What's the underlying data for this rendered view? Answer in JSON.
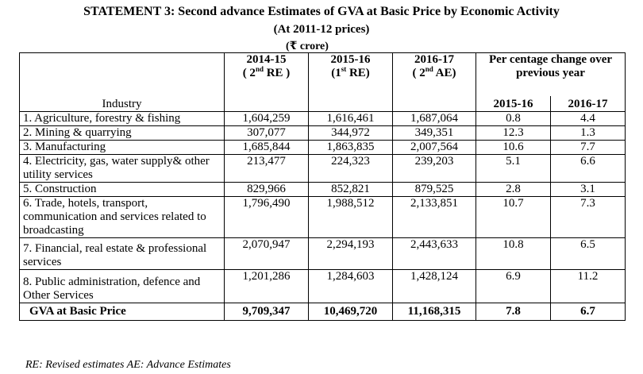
{
  "title": "STATEMENT 3: Second advance Estimates of GVA at Basic Price by Economic Activity",
  "subtitle": "(At 2011-12 prices)",
  "unit": "(₹ crore)",
  "headers": {
    "industry": "Industry",
    "c1_year": "2014-15",
    "c1_pre": "( 2",
    "c1_sup": "nd",
    "c1_post": " RE )",
    "c2_year": "2015-16",
    "c2_pre": "(1",
    "c2_sup": "st",
    "c2_post": " RE)",
    "c3_year": "2016-17",
    "c3_pre": "( 2",
    "c3_sup": "nd",
    "c3_post": " AE)",
    "pct_change": "Per centage change over previous year",
    "pct_y1": "2015-16",
    "pct_y2": "2016-17"
  },
  "rows": [
    {
      "industry": "1. Agriculture, forestry & fishing",
      "v1": "1,604,259",
      "v2": "1,616,461",
      "v3": "1,687,064",
      "p1": "0.8",
      "p2": "4.4"
    },
    {
      "industry": "2. Mining & quarrying",
      "v1": "307,077",
      "v2": "344,972",
      "v3": "349,351",
      "p1": "12.3",
      "p2": "1.3"
    },
    {
      "industry": "3. Manufacturing",
      "v1": "1,685,844",
      "v2": "1,863,835",
      "v3": "2,007,564",
      "p1": "10.6",
      "p2": "7.7"
    },
    {
      "industry": "4. Electricity, gas, water supply& other utility services",
      "v1": "213,477",
      "v2": "224,323",
      "v3": "239,203",
      "p1": "5.1",
      "p2": "6.6"
    },
    {
      "industry": "5. Construction",
      "v1": "829,966",
      "v2": "852,821",
      "v3": "879,525",
      "p1": "2.8",
      "p2": "3.1"
    },
    {
      "industry": "6. Trade, hotels, transport, communication and services related to broadcasting",
      "v1": "1,796,490",
      "v2": "1,988,512",
      "v3": "2,133,851",
      "p1": "10.7",
      "p2": "7.3"
    },
    {
      "industry": "7. Financial, real estate & professional services",
      "v1": "2,070,947",
      "v2": "2,294,193",
      "v3": "2,443,633",
      "p1": "10.8",
      "p2": "6.5"
    },
    {
      "industry": "8. Public administration, defence and Other Services",
      "v1": "1,201,286",
      "v2": "1,284,603",
      "v3": "1,428,124",
      "p1": "6.9",
      "p2": "11.2"
    }
  ],
  "total": {
    "industry": "GVA at Basic Price",
    "v1": "9,709,347",
    "v2": "10,469,720",
    "v3": "11,168,315",
    "p1": "7.8",
    "p2": "6.7"
  },
  "footnote": "RE: Revised estimates AE: Advance Estimates"
}
